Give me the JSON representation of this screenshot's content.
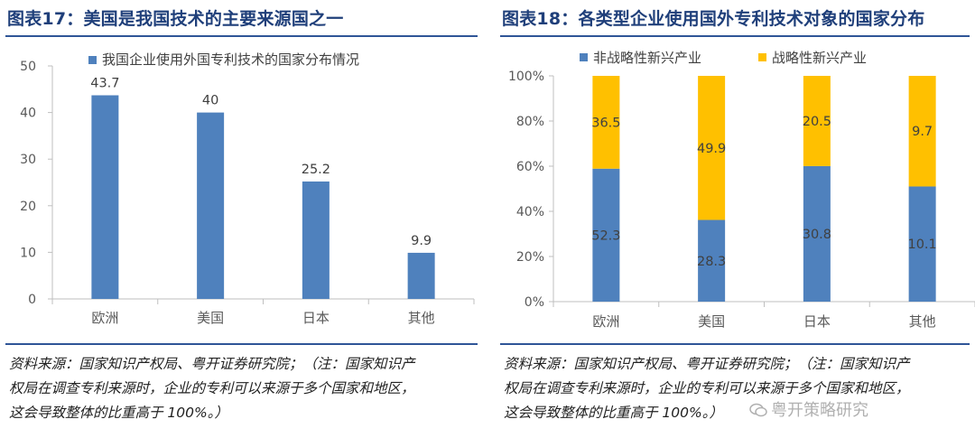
{
  "left": {
    "title": "图表17：美国是我国技术的主要来源国之一",
    "source_lines": [
      "资料来源：国家知识产权局、粤开证券研究院；（注：国家知识产",
      "权局在调查专利来源时，企业的专利可以来源于多个国家和地区，",
      "这会导致整体的比重高于 100%。）"
    ]
  },
  "right": {
    "title": "图表18：各类型企业使用国外专利技术对象的国家分布",
    "source_lines": [
      "资料来源：国家知识产权局、粤开证券研究院；（注：国家知识产",
      "权局在调查专利来源时，企业的专利可以来源于多个国家和地区，",
      "这会导致整体的比重高于 100%。）"
    ]
  },
  "watermark": "粤开策略研究",
  "colors": {
    "blue": "#4f81bd",
    "gold": "#ffc000",
    "title": "#1f3f7a"
  },
  "chart_data": [
    {
      "type": "bar",
      "title": "图表17：美国是我国技术的主要来源国之一",
      "categories": [
        "欧洲",
        "美国",
        "日本",
        "其他"
      ],
      "series": [
        {
          "name": "我国企业使用外国专利技术的国家分布情况",
          "values": [
            43.7,
            40,
            25.2,
            9.9
          ]
        }
      ],
      "value_labels": [
        "43.7",
        "40",
        "25.2",
        "9.9"
      ],
      "ylim": [
        0,
        50
      ],
      "yticks": [
        "0",
        "10",
        "20",
        "30",
        "40",
        "50"
      ],
      "legend": "top",
      "grid": false
    },
    {
      "type": "bar",
      "stacked": true,
      "percent": true,
      "title": "图表18：各类型企业使用国外专利技术对象的国家分布",
      "categories": [
        "欧洲",
        "美国",
        "日本",
        "其他"
      ],
      "series": [
        {
          "name": "非战略性新兴产业",
          "values": [
            52.3,
            28.3,
            30.8,
            10.1
          ]
        },
        {
          "name": "战略性新兴产业",
          "values": [
            36.5,
            49.9,
            20.5,
            9.7
          ]
        }
      ],
      "ylim": [
        0,
        100
      ],
      "yticks": [
        "0%",
        "20%",
        "40%",
        "60%",
        "80%",
        "100%"
      ],
      "legend": "top",
      "grid": false
    }
  ]
}
